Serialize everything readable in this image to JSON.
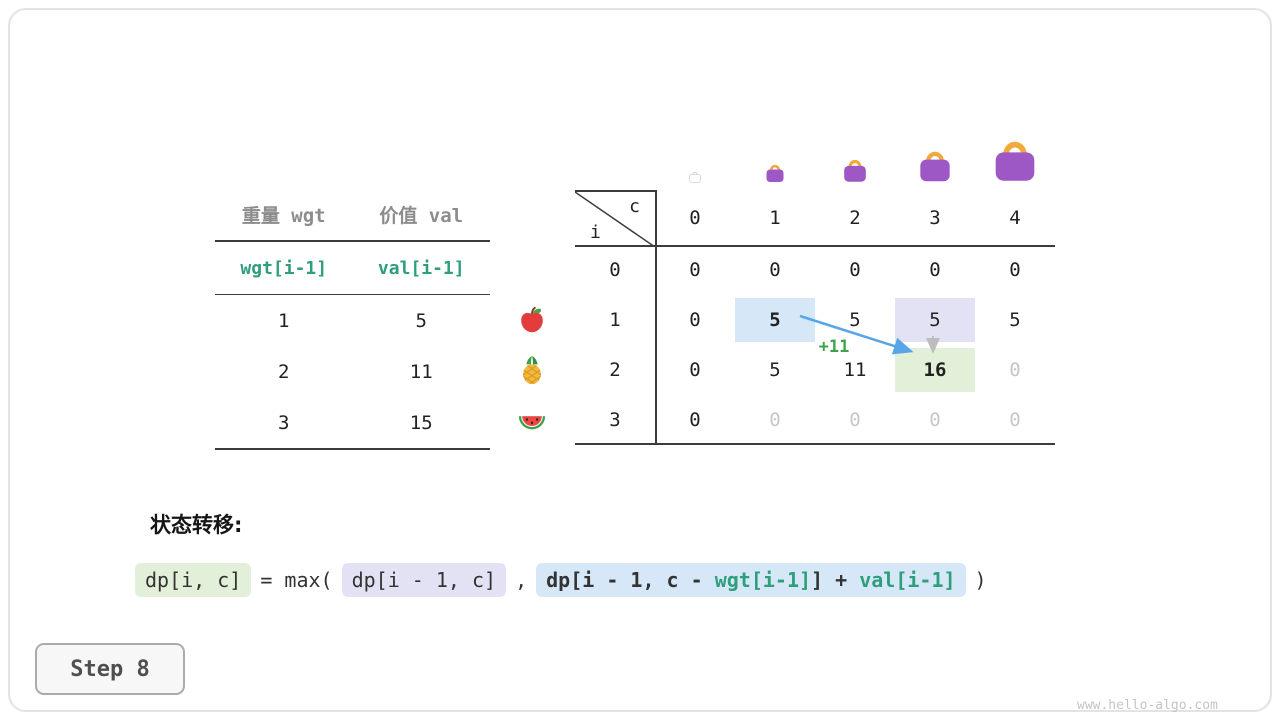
{
  "colors": {
    "teal": "#2f9e7d",
    "green": "#3fa34d",
    "arrow-blue": "#58a6e8",
    "hl-blue": "#d6e8f8",
    "hl-purple": "#e3e2f5",
    "hl-green": "#e2efd9"
  },
  "item_table": {
    "headers": [
      "重量 wgt",
      "价值 val"
    ],
    "formula_row": [
      "wgt[i-1]",
      "val[i-1]"
    ],
    "rows": [
      [
        "1",
        "5"
      ],
      [
        "2",
        "11"
      ],
      [
        "3",
        "15"
      ]
    ]
  },
  "dp_table": {
    "corner": {
      "col_label": "c",
      "row_label": "i"
    },
    "col_headers": [
      "0",
      "1",
      "2",
      "3",
      "4"
    ],
    "capacity_icons": [
      "bag-capacity-0",
      "bag-capacity-1",
      "bag-capacity-2",
      "bag-capacity-3",
      "bag-capacity-4"
    ],
    "row_icons": [
      "apple-icon",
      "pineapple-icon",
      "watermelon-icon"
    ],
    "rows": [
      {
        "header": "0",
        "cells": [
          {
            "v": "0"
          },
          {
            "v": "0"
          },
          {
            "v": "0"
          },
          {
            "v": "0"
          },
          {
            "v": "0"
          }
        ]
      },
      {
        "header": "1",
        "cells": [
          {
            "v": "0"
          },
          {
            "v": "5",
            "highlight": "blue",
            "bold": true
          },
          {
            "v": "5"
          },
          {
            "v": "5",
            "highlight": "purple"
          },
          {
            "v": "5"
          }
        ]
      },
      {
        "header": "2",
        "cells": [
          {
            "v": "0"
          },
          {
            "v": "5"
          },
          {
            "v": "11"
          },
          {
            "v": "16",
            "highlight": "green",
            "bold": true
          },
          {
            "v": "0",
            "faded": true
          }
        ]
      },
      {
        "header": "3",
        "cells": [
          {
            "v": "0"
          },
          {
            "v": "0",
            "faded": true
          },
          {
            "v": "0",
            "faded": true
          },
          {
            "v": "0",
            "faded": true
          },
          {
            "v": "0",
            "faded": true
          }
        ]
      }
    ]
  },
  "annotations": {
    "arrow_label": "+11"
  },
  "transition": {
    "label": "状态转移:",
    "lhs": "dp[i, c]",
    "eq": "= max(",
    "option1": "dp[i - 1, c]",
    "comma": ",",
    "option2_prefix": "dp[i - 1, c - ",
    "option2_wgt": "wgt[i-1]",
    "option2_mid": "] + ",
    "option2_val": "val[i-1]",
    "close": ")"
  },
  "step_badge": {
    "label": "Step 8"
  },
  "watermark": "www.hello-algo.com"
}
